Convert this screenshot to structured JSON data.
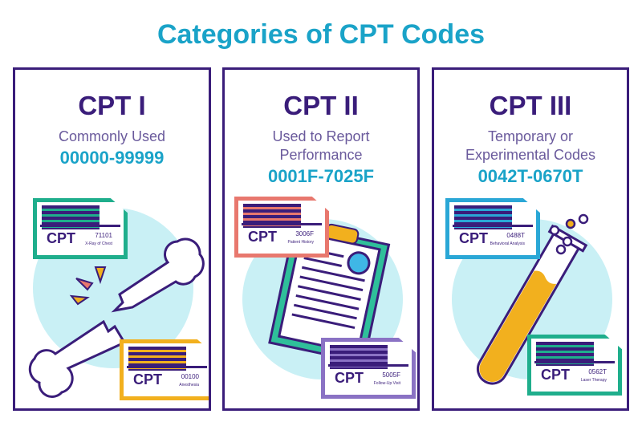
{
  "title": "Categories of CPT Codes",
  "colors": {
    "title": "#1aa3c8",
    "border": "#3a1d7a",
    "circle": "#c9f0f5"
  },
  "cards": [
    {
      "heading": "CPT I",
      "subtitle": [
        "Commonly Used"
      ],
      "range": "00000-99999",
      "illustration": "broken-bone",
      "tags": [
        {
          "cpt": "CPT",
          "code": "71101",
          "desc": "X-Ray of Chest",
          "color": "#1fae8c"
        },
        {
          "cpt": "CPT",
          "code": "00100",
          "desc": "Anesthesia",
          "color": "#f2b01e"
        }
      ]
    },
    {
      "heading": "CPT II",
      "subtitle": [
        "Used to Report",
        "Performance"
      ],
      "range": "0001F-7025F",
      "illustration": "clipboard",
      "tags": [
        {
          "cpt": "CPT",
          "code": "3006F",
          "desc": "Patient History",
          "color": "#e8786e"
        },
        {
          "cpt": "CPT",
          "code": "5005F",
          "desc": "Follow-Up Visit",
          "color": "#8a72c4"
        }
      ]
    },
    {
      "heading": "CPT III",
      "subtitle": [
        "Temporary or",
        "Experimental Codes"
      ],
      "range": "0042T-0670T",
      "illustration": "test-tube",
      "tags": [
        {
          "cpt": "CPT",
          "code": "0488T",
          "desc": "Behavioral Analysis",
          "color": "#2aa7d6"
        },
        {
          "cpt": "CPT",
          "code": "0562T",
          "desc": "Laser Therapy",
          "color": "#1fae8c"
        }
      ]
    }
  ]
}
